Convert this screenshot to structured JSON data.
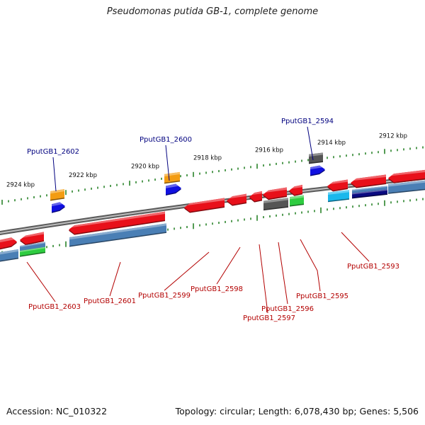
{
  "title": "Pseudomonas putida GB-1, complete genome",
  "footer": {
    "accession": "Accession: NC_010322",
    "topology": "Topology: circular; Length: 6,078,430 bp; Genes: 5,506"
  },
  "kbp_labels": [
    "2924 kbp",
    "2922 kbp",
    "2920 kbp",
    "2918 kbp",
    "2916 kbp",
    "2914 kbp",
    "2912 kbp"
  ],
  "gene_labels_top": [
    "PputGB1_2602",
    "PputGB1_2600",
    "PputGB1_2594"
  ],
  "gene_labels_bottom": [
    "PputGB1_2603",
    "PputGB1_2601",
    "PputGB1_2599",
    "PputGB1_2598",
    "PputGB1_2596",
    "PputGB1_2597",
    "PputGB1_2595",
    "PputGB1_2593"
  ],
  "colors": {
    "backbone": "#7a7a7a",
    "cds": "#e8101a",
    "gene": "#4a7fb5",
    "trna": "#f39c12",
    "rrna": "#1010e0",
    "misc": "#555555",
    "other": "#2ecc40",
    "cyan": "#1ab8ec",
    "navy": "#0a0a80",
    "tick": "#1a7a1a",
    "label_top": "#00007f",
    "label_bottom": "#b30000"
  }
}
